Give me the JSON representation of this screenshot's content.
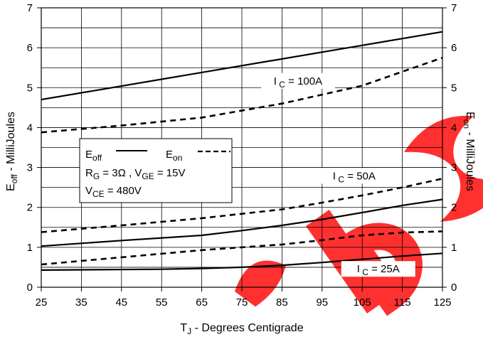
{
  "chart_data": {
    "type": "line",
    "xlabel": "T",
    "xlabel_sub": "J",
    "xlabel_rest": " - Degrees Centigrade",
    "ylabel_left": "E",
    "ylabel_left_sub": "off",
    "ylabel_left_rest": " - MilliJoules",
    "ylabel_right": "E",
    "ylabel_right_sub": "on",
    "ylabel_right_rest": " - MilliJoules",
    "xlim": [
      25,
      125
    ],
    "ylim": [
      0,
      7
    ],
    "x_ticks": [
      "25",
      "35",
      "45",
      "55",
      "65",
      "75",
      "85",
      "95",
      "105",
      "115",
      "125"
    ],
    "y_ticks": [
      "0",
      "1",
      "2",
      "3",
      "4",
      "5",
      "6",
      "7"
    ],
    "grid": true,
    "series": [
      {
        "id": "eoff_100",
        "style": "solid",
        "points": [
          [
            25,
            4.7
          ],
          [
            125,
            6.4
          ]
        ]
      },
      {
        "id": "eon_100",
        "style": "dashed",
        "points": [
          [
            25,
            3.88
          ],
          [
            45,
            4.05
          ],
          [
            65,
            4.25
          ],
          [
            85,
            4.6
          ],
          [
            105,
            5.05
          ],
          [
            115,
            5.4
          ],
          [
            125,
            5.75
          ]
        ]
      },
      {
        "id": "eoff_50",
        "style": "solid",
        "points": [
          [
            25,
            1.03
          ],
          [
            45,
            1.17
          ],
          [
            65,
            1.3
          ],
          [
            75,
            1.42
          ],
          [
            85,
            1.55
          ],
          [
            95,
            1.7
          ],
          [
            105,
            1.87
          ],
          [
            115,
            2.05
          ],
          [
            125,
            2.2
          ]
        ]
      },
      {
        "id": "eon_50",
        "style": "dashed",
        "points": [
          [
            25,
            1.38
          ],
          [
            45,
            1.55
          ],
          [
            65,
            1.73
          ],
          [
            85,
            1.95
          ],
          [
            95,
            2.12
          ],
          [
            105,
            2.3
          ],
          [
            115,
            2.5
          ],
          [
            125,
            2.72
          ]
        ]
      },
      {
        "id": "eoff_25",
        "style": "solid",
        "points": [
          [
            25,
            0.43
          ],
          [
            55,
            0.45
          ],
          [
            65,
            0.47
          ],
          [
            75,
            0.5
          ],
          [
            85,
            0.55
          ],
          [
            95,
            0.62
          ],
          [
            105,
            0.7
          ],
          [
            115,
            0.78
          ],
          [
            125,
            0.85
          ]
        ]
      },
      {
        "id": "eon_25",
        "style": "dashed",
        "points": [
          [
            25,
            0.57
          ],
          [
            45,
            0.75
          ],
          [
            65,
            0.93
          ],
          [
            85,
            1.07
          ],
          [
            95,
            1.18
          ],
          [
            105,
            1.3
          ],
          [
            115,
            1.37
          ],
          [
            125,
            1.4
          ]
        ]
      }
    ],
    "annotations": [
      {
        "id": "ic_100",
        "text": "I",
        "sub": " C",
        "rest": " = 100A",
        "x": 89,
        "y": 5.08
      },
      {
        "id": "ic_50",
        "text": "I",
        "sub": " C",
        "rest": " = 50A",
        "x": 103,
        "y": 2.7
      },
      {
        "id": "ic_25",
        "text": "I",
        "sub": " C",
        "rest": " = 25A",
        "x": 109,
        "y": 0.37
      }
    ],
    "legend": {
      "position": "center-left",
      "eoff": "E",
      "eoff_sub": "off",
      "eon": "E",
      "eon_sub": "on",
      "rg": "R",
      "rg_sub": "G",
      "rg_rest": " = 3Ω ,  V",
      "vge_sub": "GE",
      "vge_rest": " = 15V",
      "vce": "V",
      "vce_sub": "CE",
      "vce_rest": " = 480V"
    }
  },
  "watermark": {
    "text": "ebs",
    "color": "#ff0000"
  }
}
